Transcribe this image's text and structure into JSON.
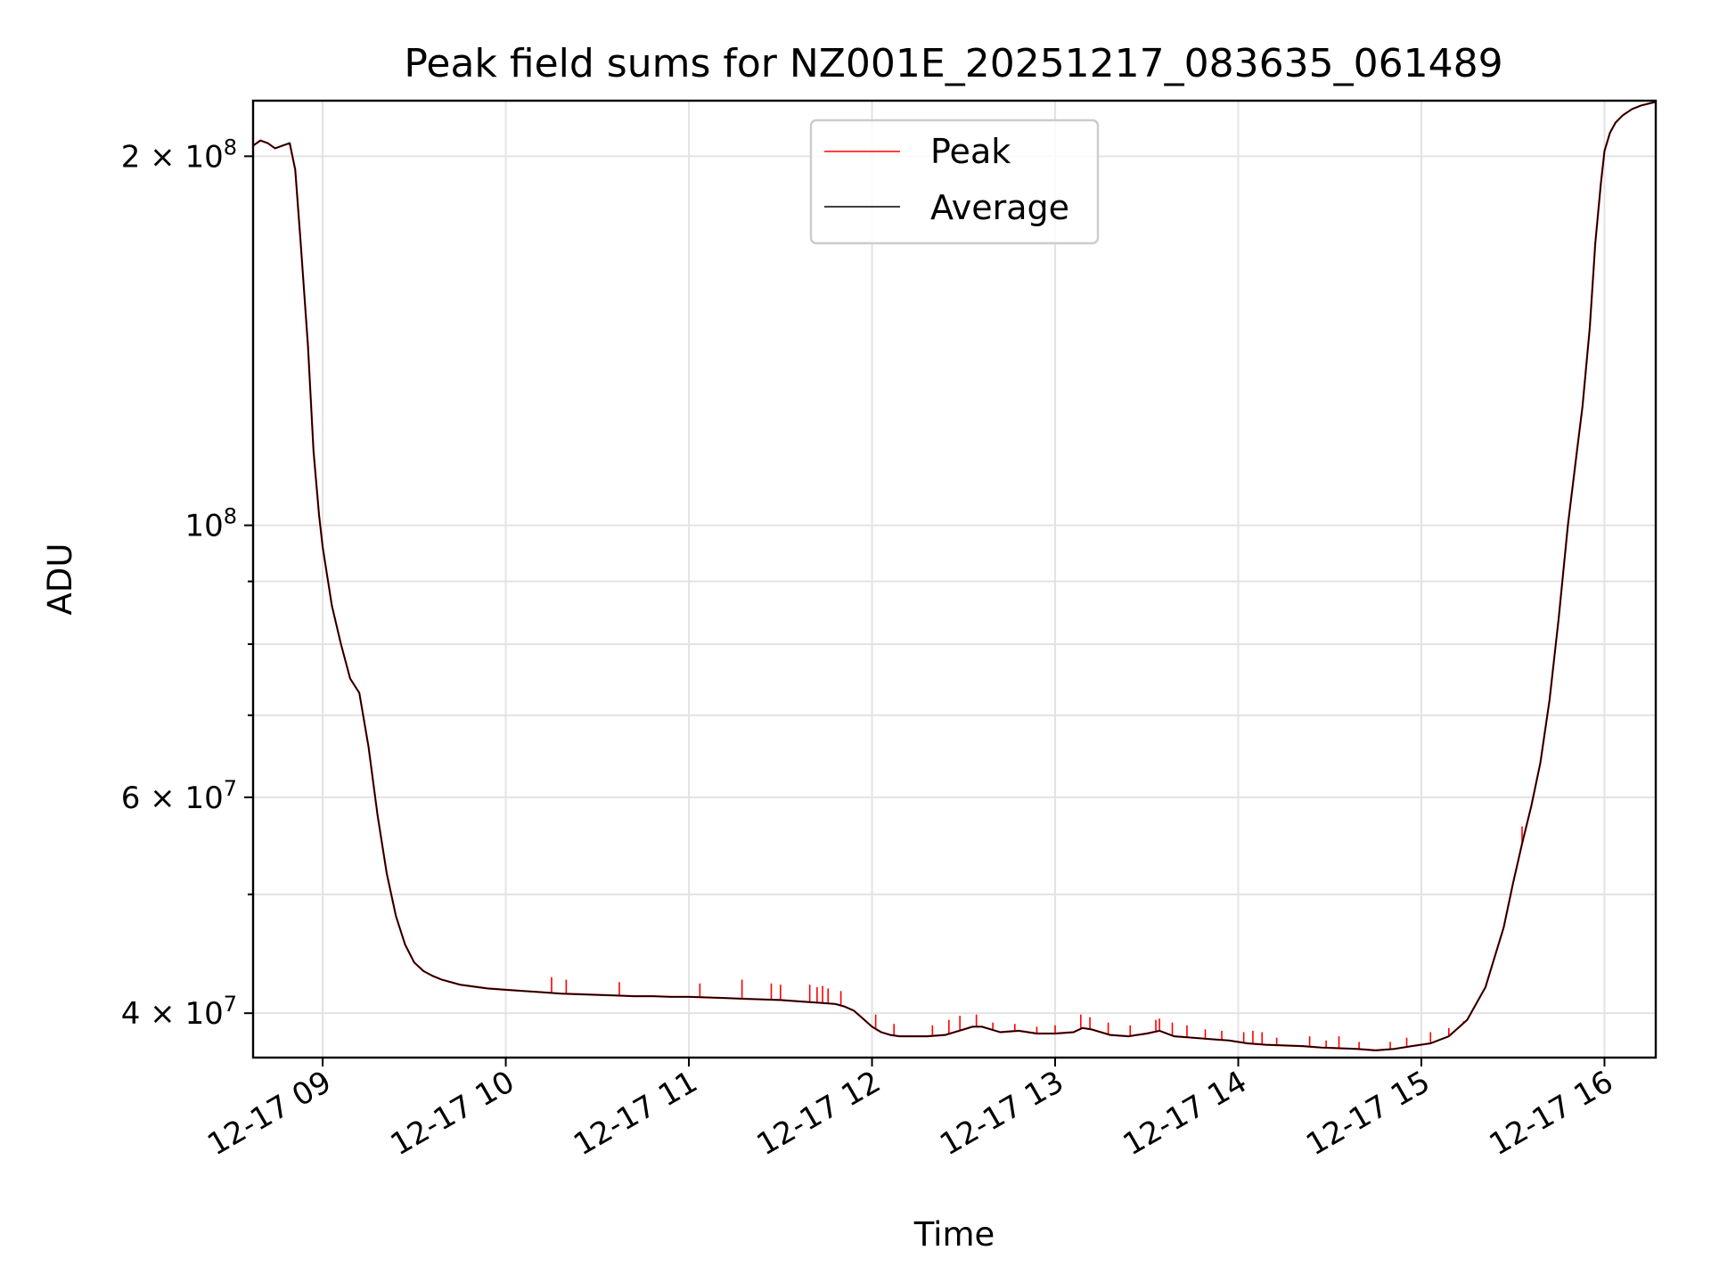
{
  "chart_data": {
    "type": "line",
    "title": "Peak field sums for NZ001E_20251217_083635_061489",
    "xlabel": "Time",
    "ylabel": "ADU",
    "yscale": "log",
    "xlim": [
      8.62,
      16.28
    ],
    "ylim": [
      36800000,
      222000000
    ],
    "grid": true,
    "legend": {
      "placement": "upper center",
      "entries": [
        "Peak",
        "Average"
      ]
    },
    "x_ticks": [
      {
        "value": 9,
        "label": "12-17 09"
      },
      {
        "value": 10,
        "label": "12-17 10"
      },
      {
        "value": 11,
        "label": "12-17 11"
      },
      {
        "value": 12,
        "label": "12-17 12"
      },
      {
        "value": 13,
        "label": "12-17 13"
      },
      {
        "value": 14,
        "label": "12-17 14"
      },
      {
        "value": 15,
        "label": "12-17 15"
      },
      {
        "value": 16,
        "label": "12-17 16"
      }
    ],
    "y_ticks": [
      {
        "value": 40000000,
        "label": "4 × 10⁷",
        "mantissa": "4",
        "exponent": "7"
      },
      {
        "value": 60000000,
        "label": "6 × 10⁷",
        "mantissa": "6",
        "exponent": "7"
      },
      {
        "value": 100000000,
        "label": "10⁸",
        "mantissa": "",
        "exponent": "8"
      },
      {
        "value": 200000000,
        "label": "2 × 10⁸",
        "mantissa": "2",
        "exponent": "8"
      }
    ],
    "y_minor_ticks": [
      50000000,
      70000000,
      80000000,
      90000000
    ],
    "series": [
      {
        "name": "Average",
        "color": "#000000",
        "x": [
          8.62,
          8.66,
          8.7,
          8.74,
          8.78,
          8.82,
          8.85,
          8.88,
          8.92,
          8.95,
          8.98,
          9.0,
          9.05,
          9.1,
          9.15,
          9.2,
          9.25,
          9.3,
          9.35,
          9.4,
          9.45,
          9.5,
          9.55,
          9.6,
          9.65,
          9.7,
          9.75,
          9.8,
          9.9,
          10.0,
          10.1,
          10.2,
          10.3,
          10.4,
          10.5,
          10.6,
          10.7,
          10.8,
          10.9,
          11.0,
          11.1,
          11.2,
          11.3,
          11.4,
          11.5,
          11.6,
          11.7,
          11.8,
          11.85,
          11.9,
          11.95,
          12.0,
          12.05,
          12.1,
          12.15,
          12.2,
          12.3,
          12.4,
          12.5,
          12.55,
          12.6,
          12.7,
          12.8,
          12.9,
          13.0,
          13.1,
          13.15,
          13.2,
          13.3,
          13.4,
          13.5,
          13.57,
          13.65,
          13.75,
          13.85,
          13.95,
          14.05,
          14.15,
          14.25,
          14.35,
          14.45,
          14.55,
          14.65,
          14.75,
          14.85,
          14.95,
          15.05,
          15.15,
          15.25,
          15.35,
          15.45,
          15.5,
          15.55,
          15.6,
          15.65,
          15.7,
          15.75,
          15.8,
          15.85,
          15.88,
          15.92,
          15.95,
          15.98,
          16.0,
          16.03,
          16.06,
          16.1,
          16.15,
          16.2,
          16.28
        ],
        "y": [
          204000000,
          206000000,
          205000000,
          203000000,
          204000000,
          205000000,
          195000000,
          170000000,
          140000000,
          115000000,
          102000000,
          96000000,
          86000000,
          80000000,
          75000000,
          73000000,
          66000000,
          58000000,
          52000000,
          48000000,
          45500000,
          44000000,
          43300000,
          42900000,
          42600000,
          42400000,
          42200000,
          42100000,
          41900000,
          41800000,
          41700000,
          41600000,
          41500000,
          41450000,
          41400000,
          41350000,
          41300000,
          41300000,
          41250000,
          41250000,
          41200000,
          41150000,
          41100000,
          41050000,
          41000000,
          40900000,
          40800000,
          40700000,
          40500000,
          40200000,
          39600000,
          39000000,
          38600000,
          38400000,
          38300000,
          38300000,
          38300000,
          38400000,
          38800000,
          39000000,
          39000000,
          38600000,
          38700000,
          38500000,
          38500000,
          38600000,
          38900000,
          38800000,
          38400000,
          38300000,
          38500000,
          38700000,
          38300000,
          38200000,
          38100000,
          38000000,
          37800000,
          37700000,
          37650000,
          37600000,
          37500000,
          37450000,
          37400000,
          37300000,
          37400000,
          37600000,
          37800000,
          38300000,
          39500000,
          42000000,
          47000000,
          51000000,
          55000000,
          59000000,
          64000000,
          72000000,
          84000000,
          100000000,
          115000000,
          125000000,
          145000000,
          170000000,
          190000000,
          202000000,
          209000000,
          213000000,
          216000000,
          218500000,
          220000000,
          221500000
        ]
      },
      {
        "name": "Peak",
        "color": "#ff0000",
        "note": "Follows Average closely with brief positive spikes",
        "spikes": [
          {
            "x": 10.25,
            "y": 42800000
          },
          {
            "x": 10.33,
            "y": 42600000
          },
          {
            "x": 10.62,
            "y": 42400000
          },
          {
            "x": 11.06,
            "y": 42300000
          },
          {
            "x": 11.29,
            "y": 42600000
          },
          {
            "x": 11.45,
            "y": 42300000
          },
          {
            "x": 11.5,
            "y": 42200000
          },
          {
            "x": 11.66,
            "y": 42200000
          },
          {
            "x": 11.7,
            "y": 42000000
          },
          {
            "x": 11.73,
            "y": 42100000
          },
          {
            "x": 11.76,
            "y": 41900000
          },
          {
            "x": 11.83,
            "y": 41700000
          },
          {
            "x": 12.02,
            "y": 39900000
          },
          {
            "x": 12.12,
            "y": 39200000
          },
          {
            "x": 12.33,
            "y": 39100000
          },
          {
            "x": 12.42,
            "y": 39500000
          },
          {
            "x": 12.48,
            "y": 39800000
          },
          {
            "x": 12.57,
            "y": 39900000
          },
          {
            "x": 12.66,
            "y": 39300000
          },
          {
            "x": 12.78,
            "y": 39200000
          },
          {
            "x": 12.9,
            "y": 39000000
          },
          {
            "x": 13.0,
            "y": 39100000
          },
          {
            "x": 13.14,
            "y": 39900000
          },
          {
            "x": 13.19,
            "y": 39700000
          },
          {
            "x": 13.29,
            "y": 39300000
          },
          {
            "x": 13.41,
            "y": 39100000
          },
          {
            "x": 13.55,
            "y": 39500000
          },
          {
            "x": 13.57,
            "y": 39600000
          },
          {
            "x": 13.64,
            "y": 39300000
          },
          {
            "x": 13.72,
            "y": 39100000
          },
          {
            "x": 13.82,
            "y": 38800000
          },
          {
            "x": 13.91,
            "y": 38700000
          },
          {
            "x": 14.03,
            "y": 38600000
          },
          {
            "x": 14.08,
            "y": 38700000
          },
          {
            "x": 14.13,
            "y": 38600000
          },
          {
            "x": 14.21,
            "y": 38200000
          },
          {
            "x": 14.39,
            "y": 38300000
          },
          {
            "x": 14.48,
            "y": 38000000
          },
          {
            "x": 14.55,
            "y": 38300000
          },
          {
            "x": 14.66,
            "y": 37900000
          },
          {
            "x": 14.83,
            "y": 37900000
          },
          {
            "x": 14.92,
            "y": 38200000
          },
          {
            "x": 15.05,
            "y": 38600000
          },
          {
            "x": 15.15,
            "y": 38900000
          },
          {
            "x": 15.23,
            "y": 39400000
          },
          {
            "x": 15.38,
            "y": 43500000
          },
          {
            "x": 15.55,
            "y": 56800000
          }
        ]
      }
    ]
  }
}
